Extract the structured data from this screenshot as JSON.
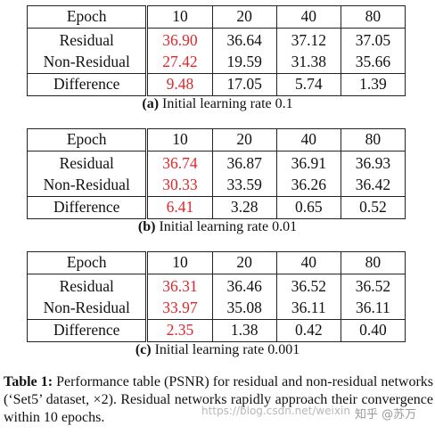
{
  "tables": [
    {
      "header": {
        "label": "Epoch",
        "epochs": [
          "10",
          "20",
          "40",
          "80"
        ]
      },
      "rows": [
        {
          "label": "Residual",
          "values": [
            "36.90",
            "36.64",
            "37.12",
            "37.05"
          ]
        },
        {
          "label": "Non-Residual",
          "values": [
            "27.42",
            "19.59",
            "31.38",
            "35.66"
          ]
        },
        {
          "label": "Difference",
          "values": [
            "9.48",
            "17.05",
            "5.74",
            "1.39"
          ]
        }
      ],
      "caption_tag": "(a)",
      "caption_text": " Initial learning rate 0.1"
    },
    {
      "header": {
        "label": "Epoch",
        "epochs": [
          "10",
          "20",
          "40",
          "80"
        ]
      },
      "rows": [
        {
          "label": "Residual",
          "values": [
            "36.74",
            "36.87",
            "36.91",
            "36.93"
          ]
        },
        {
          "label": "Non-Residual",
          "values": [
            "30.33",
            "33.59",
            "36.26",
            "36.42"
          ]
        },
        {
          "label": "Difference",
          "values": [
            "6.41",
            "3.28",
            "0.65",
            "0.52"
          ]
        }
      ],
      "caption_tag": "(b)",
      "caption_text": " Initial learning rate 0.01"
    },
    {
      "header": {
        "label": "Epoch",
        "epochs": [
          "10",
          "20",
          "40",
          "80"
        ]
      },
      "rows": [
        {
          "label": "Residual",
          "values": [
            "36.31",
            "36.46",
            "36.52",
            "36.52"
          ]
        },
        {
          "label": "Non-Residual",
          "values": [
            "33.97",
            "35.08",
            "36.11",
            "36.11"
          ]
        },
        {
          "label": "Difference",
          "values": [
            "2.35",
            "1.38",
            "0.42",
            "0.40"
          ]
        }
      ],
      "caption_tag": "(c)",
      "caption_text": " Initial learning rate 0.001"
    }
  ],
  "highlight_color": "#e0262a",
  "table_caption": {
    "tag": "Table 1:",
    "text": " Performance table (PSNR) for residual and non-residual networks (‘Set5’ dataset, ×2). Residual networks rapidly approach their convergence within 10 epochs."
  },
  "watermark": {
    "url": "https://blog.csdn.net/weixin",
    "brand": "知乎 @苏万"
  }
}
